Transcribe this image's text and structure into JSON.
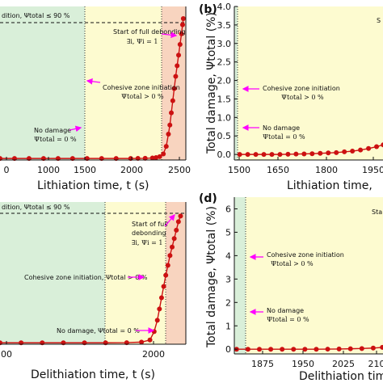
{
  "colors": {
    "green_zone": "#d9efd9",
    "yellow_zone": "#fdfbd0",
    "red_zone": "#f8d4bf",
    "series": "#cc1111",
    "arrow": "#ff00ff",
    "dashed": "#111111"
  },
  "chart_data": [
    {
      "panel": "(a)",
      "type": "scatter",
      "xlabel": "Lithiation time, t (s)",
      "xlim": [
        0,
        2560
      ],
      "x_ticks": [
        "0",
        "1000",
        "1500",
        "2000",
        "2500"
      ],
      "ylim": [
        -1,
        100
      ],
      "zones": [
        {
          "name": "green",
          "x0": 0,
          "x1": 1450
        },
        {
          "name": "yellow",
          "x0": 1450,
          "x1": 2300
        },
        {
          "name": "red",
          "x0": 2300,
          "x1": 2560
        }
      ],
      "dashed_threshold_y": 90,
      "annotations": {
        "header": "dition, Ψtotal ≤ 90 %",
        "full_debond_line1": "Start of full debonding",
        "full_debond_line2": "∃i, Ψi = 1",
        "cohesive_line1": "Cohesive zone initiation",
        "cohesive_line2": "Ψtotal > 0 %",
        "nodamage_line1": "No damage",
        "nodamage_line2": "Ψtotal = 0 %"
      },
      "points": [
        [
          0,
          0
        ],
        [
          200,
          0
        ],
        [
          400,
          0
        ],
        [
          600,
          0
        ],
        [
          800,
          0
        ],
        [
          1000,
          0
        ],
        [
          1200,
          0
        ],
        [
          1400,
          0
        ],
        [
          1600,
          0
        ],
        [
          1800,
          0
        ],
        [
          1900,
          0.05
        ],
        [
          2000,
          0.1
        ],
        [
          2100,
          0.3
        ],
        [
          2150,
          0.6
        ],
        [
          2200,
          1.2
        ],
        [
          2250,
          3
        ],
        [
          2290,
          8
        ],
        [
          2320,
          16
        ],
        [
          2340,
          22
        ],
        [
          2360,
          30
        ],
        [
          2380,
          38
        ],
        [
          2400,
          46
        ],
        [
          2420,
          54
        ],
        [
          2440,
          61
        ],
        [
          2460,
          68
        ],
        [
          2480,
          75
        ],
        [
          2500,
          82
        ],
        [
          2515,
          88
        ],
        [
          2525,
          92
        ]
      ]
    },
    {
      "panel": "(b)",
      "type": "scatter",
      "ylabel": "Total damage, Ψtotal (%)",
      "xlabel": "Lithiation time,",
      "xlim": [
        1470,
        2030
      ],
      "ylim": [
        -0.15,
        4.0
      ],
      "y_ticks": [
        "0.0",
        "0.5",
        "1.0",
        "1.5",
        "2.0",
        "2.5",
        "3.0",
        "3.5",
        "4.0"
      ],
      "x_ticks": [
        "1500",
        "1650",
        "1800",
        "1950"
      ],
      "zones": [
        {
          "name": "green",
          "x0": 1470,
          "x1": 1480
        },
        {
          "name": "yellow",
          "x0": 1480,
          "x1": 2030
        }
      ],
      "annotations": {
        "corner": "S",
        "cohesive_line1": "Cohesive zone initiation",
        "cohesive_line2": "Ψtotal > 0 %",
        "nodamage_line1": "No damage",
        "nodamage_line2": "Ψtotal = 0 %"
      },
      "points": [
        [
          1490,
          0.0
        ],
        [
          1520,
          0.0
        ],
        [
          1550,
          0.0
        ],
        [
          1580,
          0.0
        ],
        [
          1610,
          0.0
        ],
        [
          1640,
          0.0
        ],
        [
          1670,
          0.005
        ],
        [
          1700,
          0.01
        ],
        [
          1730,
          0.015
        ],
        [
          1760,
          0.02
        ],
        [
          1790,
          0.03
        ],
        [
          1820,
          0.04
        ],
        [
          1850,
          0.05
        ],
        [
          1880,
          0.07
        ],
        [
          1910,
          0.09
        ],
        [
          1940,
          0.12
        ],
        [
          1970,
          0.16
        ],
        [
          2000,
          0.21
        ],
        [
          2025,
          0.26
        ]
      ]
    },
    {
      "panel": "(c)",
      "type": "scatter",
      "xlabel": "Delithiation time, t (s)",
      "xlim": [
        1450,
        2330
      ],
      "x_ticks": [
        "00",
        "2000"
      ],
      "ylim": [
        -1,
        100
      ],
      "zones": [
        {
          "name": "green",
          "x0": 1450,
          "x1": 1860
        },
        {
          "name": "yellow",
          "x0": 1860,
          "x1": 2160
        },
        {
          "name": "red",
          "x0": 2160,
          "x1": 2330
        }
      ],
      "dashed_threshold_y": 90,
      "annotations": {
        "header": "dition, Ψtotal ≤ 90 %",
        "full_debond_line1": "Start of full",
        "full_debond_line2": "debonding",
        "full_debond_line3": "∃i, Ψi = 1",
        "cohesive_line1": "Cohesive zone initiation, Ψtotal > 0 %",
        "nodamage_line1": "No damage, Ψtotal = 0 %"
      },
      "points": [
        [
          1450,
          0
        ],
        [
          1550,
          0
        ],
        [
          1650,
          0
        ],
        [
          1750,
          0
        ],
        [
          1850,
          0
        ],
        [
          1950,
          0
        ],
        [
          2050,
          0.1
        ],
        [
          2120,
          0.5
        ],
        [
          2160,
          2
        ],
        [
          2180,
          8
        ],
        [
          2195,
          16
        ],
        [
          2205,
          24
        ],
        [
          2215,
          32
        ],
        [
          2225,
          40
        ],
        [
          2235,
          48
        ],
        [
          2245,
          55
        ],
        [
          2255,
          62
        ],
        [
          2265,
          68
        ],
        [
          2275,
          74
        ],
        [
          2285,
          80
        ],
        [
          2295,
          86
        ],
        [
          2305,
          90
        ]
      ]
    },
    {
      "panel": "(d)",
      "type": "scatter",
      "ylabel": "Total damage, Ψtotal (%)",
      "xlabel": "Delithiation time",
      "xlim": [
        1840,
        2170
      ],
      "ylim": [
        -0.2,
        6.5
      ],
      "y_ticks": [
        "0",
        "1",
        "2",
        "3",
        "4",
        "5",
        "6"
      ],
      "x_ticks": [
        "1875",
        "1950",
        "2025",
        "210"
      ],
      "zones": [
        {
          "name": "green",
          "x0": 1840,
          "x1": 1860
        },
        {
          "name": "yellow",
          "x0": 1860,
          "x1": 2170
        }
      ],
      "annotations": {
        "corner": "Sta",
        "cohesive_line1": "Cohesive zone initiation",
        "cohesive_line2": "Ψtotal > 0 %",
        "nodamage_line1": "No damage",
        "nodamage_line2": "Ψtotal = 0 %"
      },
      "points": [
        [
          1845,
          0.0
        ],
        [
          1870,
          0.0
        ],
        [
          1895,
          0.0
        ],
        [
          1920,
          0.0
        ],
        [
          1945,
          0.0
        ],
        [
          1970,
          0.0
        ],
        [
          1995,
          0.0
        ],
        [
          2020,
          0.0
        ],
        [
          2045,
          0.005
        ],
        [
          2070,
          0.01
        ],
        [
          2095,
          0.02
        ],
        [
          2120,
          0.03
        ],
        [
          2145,
          0.05
        ],
        [
          2165,
          0.08
        ]
      ]
    }
  ]
}
